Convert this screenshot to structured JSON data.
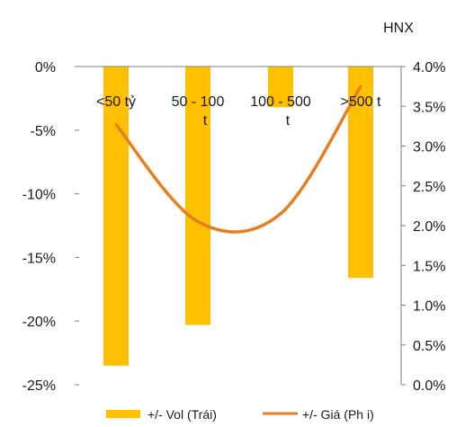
{
  "chart_data": {
    "type": "bar-line",
    "title": "HNX",
    "categories": [
      "<50 tỷ",
      "50 - 100 t",
      "100 - 500 t",
      ">500 t"
    ],
    "category_lines": [
      [
        "<50 tỷ"
      ],
      [
        "50 - 100",
        "t"
      ],
      [
        "100 - 500",
        "t"
      ],
      [
        ">500 t"
      ]
    ],
    "series": [
      {
        "name": "+/- Vol (Trái)",
        "type": "bar",
        "axis": "left",
        "values": [
          -23.5,
          -20.3,
          -3.2,
          -16.6
        ]
      },
      {
        "name": "+/- Giá (Ph i)",
        "type": "line",
        "axis": "right",
        "values": [
          3.27,
          2.05,
          2.15,
          3.75
        ]
      }
    ],
    "left_axis": {
      "min": -25,
      "max": 0,
      "ticks": [
        0,
        -5,
        -10,
        -15,
        -20,
        -25
      ],
      "tick_labels": [
        "0%",
        "-5%",
        "-10%",
        "-15%",
        "-20%",
        "-25%"
      ]
    },
    "right_axis": {
      "min": 0,
      "max": 4,
      "ticks": [
        4,
        3.5,
        3,
        2.5,
        2,
        1.5,
        1,
        0.5,
        0
      ],
      "tick_labels": [
        "4.0%",
        "3.5%",
        "3.0%",
        "2.5%",
        "2.0%",
        "1.5%",
        "1.0%",
        "0.5%",
        "0.0%"
      ]
    },
    "grid": false,
    "legend_position": "bottom",
    "colors": {
      "bar": "#FFC000",
      "line": "#E67E22",
      "axis": "#7f7f7f"
    }
  }
}
